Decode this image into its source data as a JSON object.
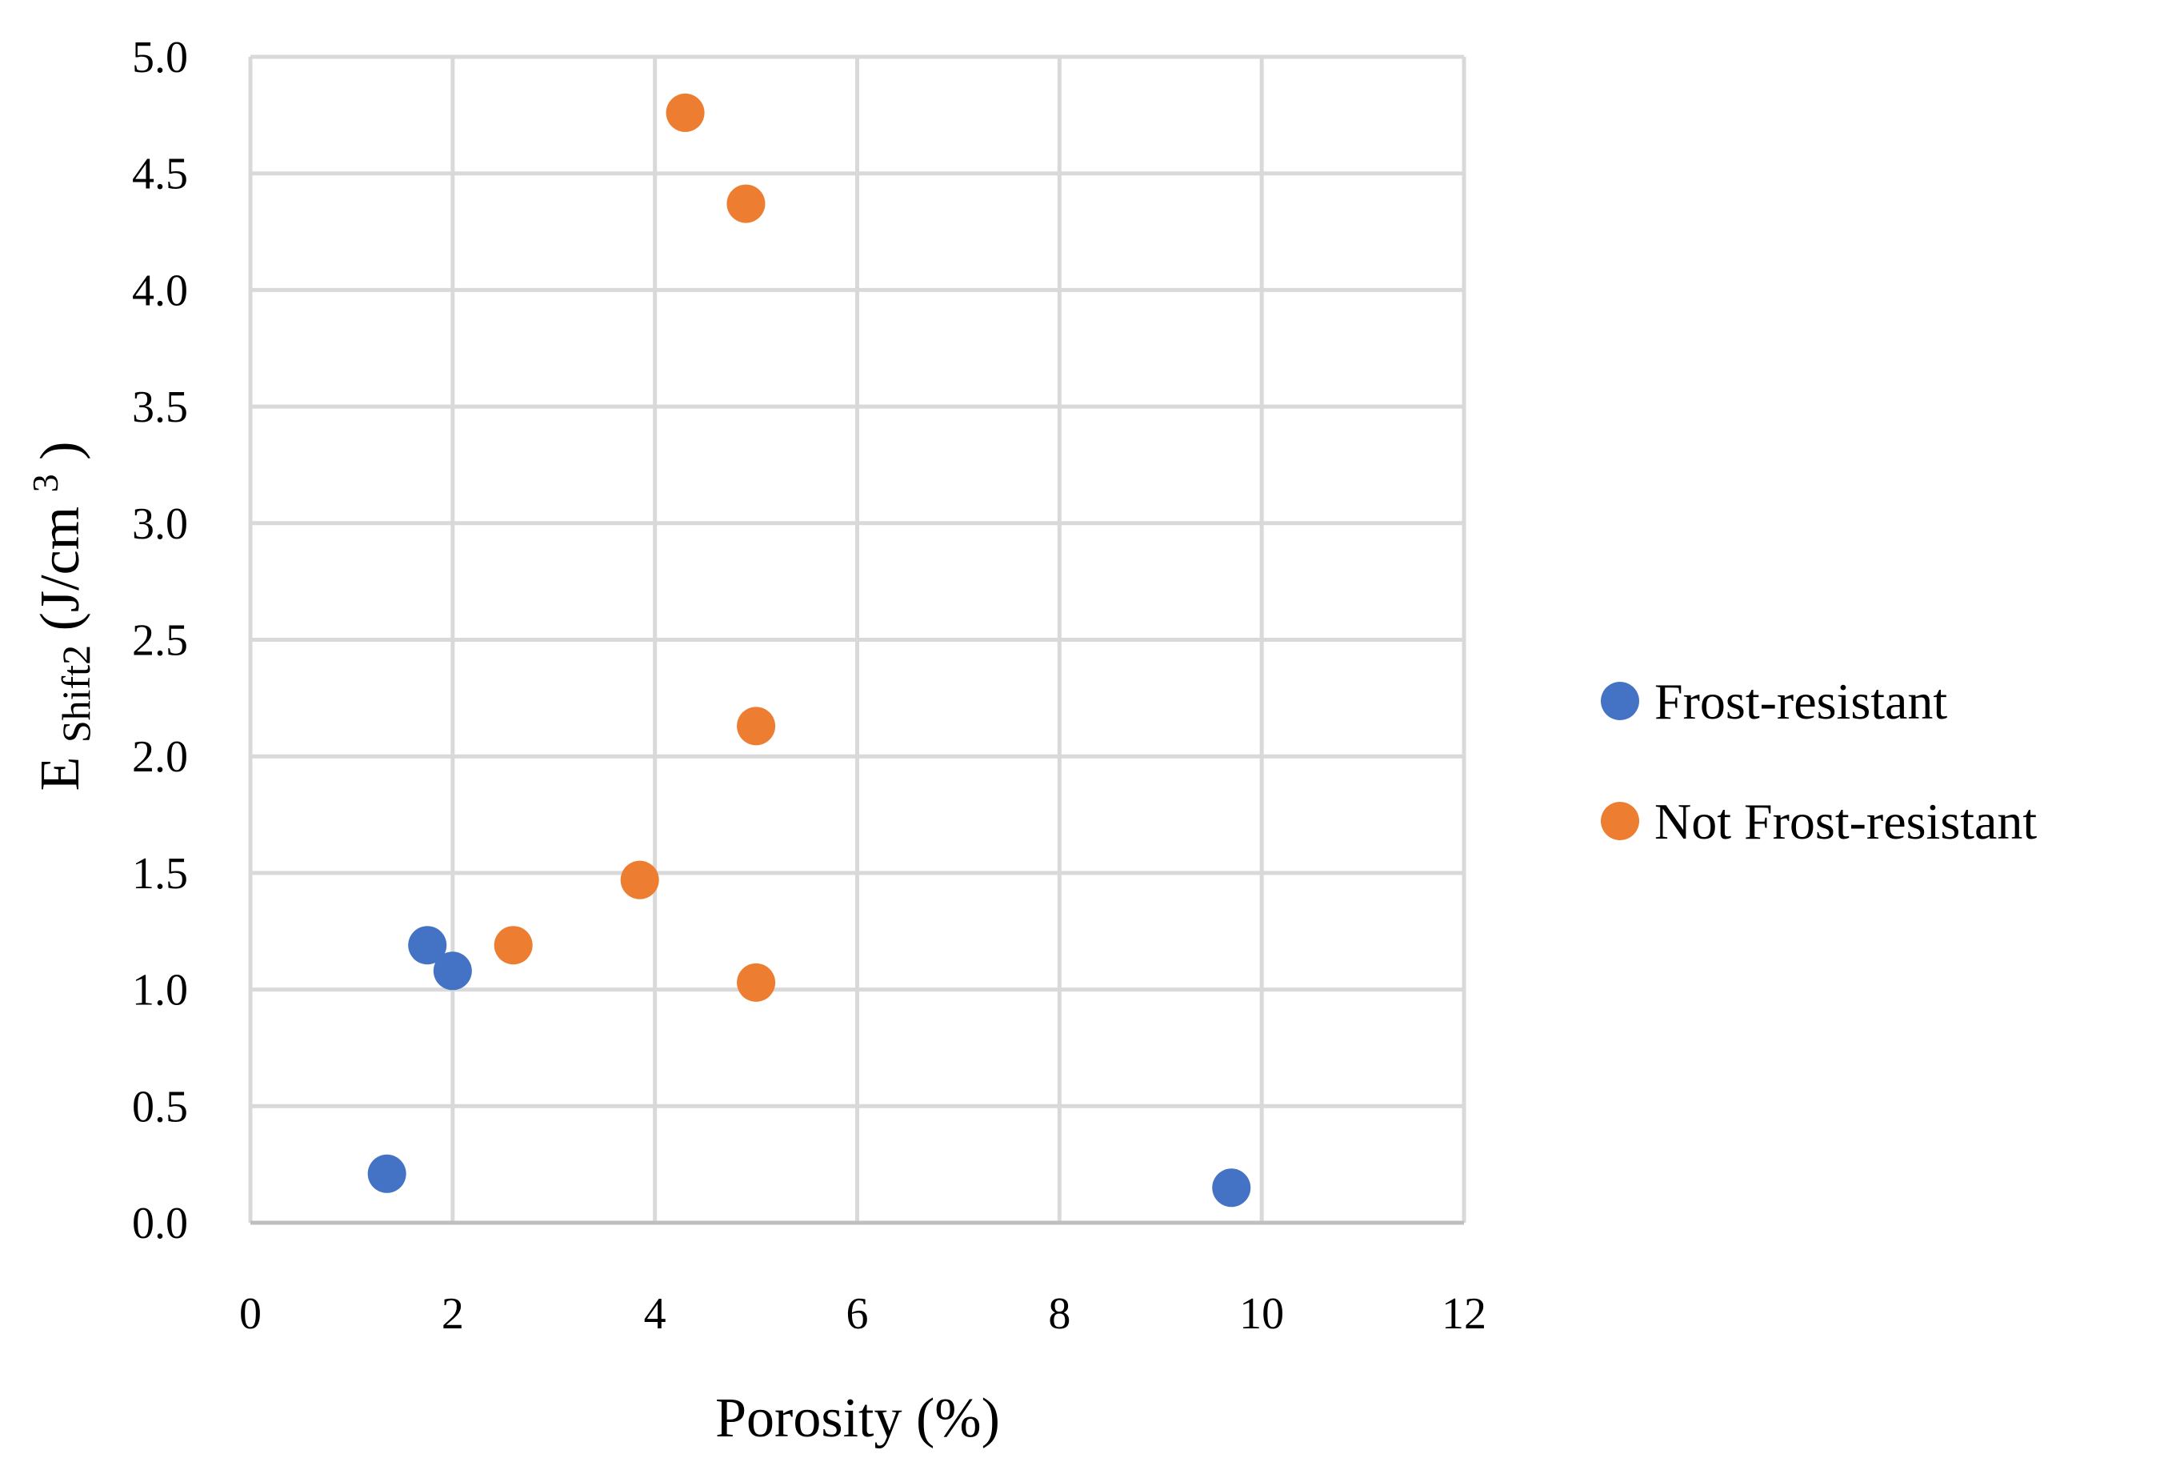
{
  "chart_data": {
    "type": "scatter",
    "title": "",
    "xlabel": "Porosity (%)",
    "ylabel": {
      "main": "E",
      "subscript": "Shift2",
      "unit_prefix": " (J/cm",
      "superscript": "3",
      "unit_suffix": ")"
    },
    "xlim": [
      0,
      12
    ],
    "ylim": [
      0,
      5
    ],
    "x_ticks": [
      0,
      2,
      4,
      6,
      8,
      10,
      12
    ],
    "y_ticks": [
      0,
      0.5,
      1,
      1.5,
      2,
      2.5,
      3,
      3.5,
      4,
      4.5,
      5
    ],
    "x_tick_labels": [
      "0",
      "2",
      "4",
      "6",
      "8",
      "10",
      "12"
    ],
    "y_tick_labels": [
      "0.0",
      "0.5",
      "1.0",
      "1.5",
      "2.0",
      "2.5",
      "3.0",
      "3.5",
      "4.0",
      "4.5",
      "5.0"
    ],
    "grid": true,
    "legend_position": "right",
    "series": [
      {
        "name": "Frost-resistant",
        "color": "#4472C4",
        "points": [
          {
            "x": 1.35,
            "y": 0.21
          },
          {
            "x": 1.75,
            "y": 1.19
          },
          {
            "x": 2.0,
            "y": 1.08
          },
          {
            "x": 9.7,
            "y": 0.15
          }
        ]
      },
      {
        "name": "Not Frost-resistant",
        "color": "#ED7D31",
        "points": [
          {
            "x": 4.3,
            "y": 4.76
          },
          {
            "x": 4.9,
            "y": 4.37
          },
          {
            "x": 5.0,
            "y": 2.13
          },
          {
            "x": 3.85,
            "y": 1.47
          },
          {
            "x": 2.6,
            "y": 1.19
          },
          {
            "x": 5.0,
            "y": 1.03
          }
        ]
      }
    ]
  }
}
